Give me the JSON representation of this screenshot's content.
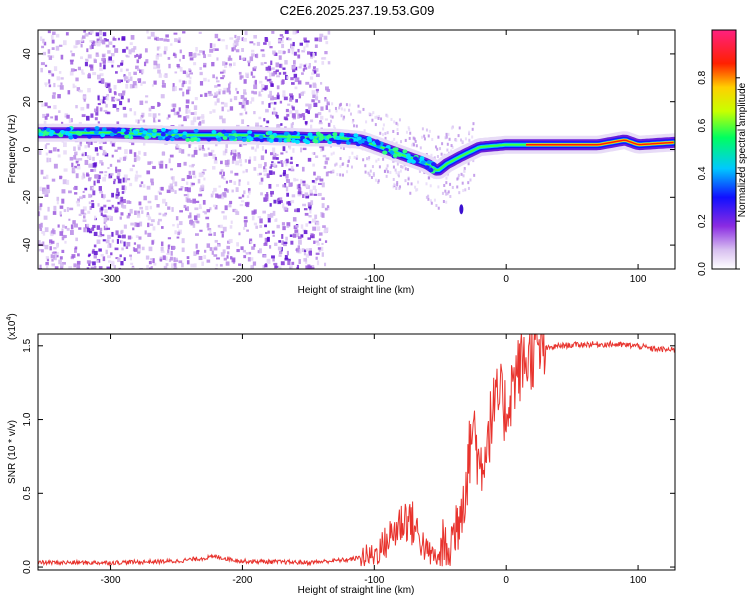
{
  "title": "C2E6.2025.237.19.53.G09",
  "chart_data": [
    {
      "type": "heatmap",
      "xlabel": "Height of straight line (km)",
      "ylabel": "Frequency (Hz)",
      "xlim": [
        -355,
        128
      ],
      "ylim": [
        -50,
        50
      ],
      "xticks": [
        -300,
        -200,
        -100,
        0,
        100
      ],
      "xtick_labels": [
        "-300",
        "-200",
        "-100",
        "0",
        "100"
      ],
      "yticks": [
        -40,
        -20,
        0,
        20,
        40
      ],
      "ytick_labels": [
        "-40",
        "-20",
        "0",
        "20",
        "40"
      ],
      "ridge": {
        "x": [
          -355,
          -320,
          -300,
          -250,
          -200,
          -150,
          -130,
          -110,
          -90,
          -70,
          -60,
          -52,
          -45,
          -35,
          -20,
          0,
          40,
          70,
          90,
          100,
          128
        ],
        "y": [
          7,
          7,
          7,
          6,
          6,
          5,
          5,
          4,
          0,
          -4,
          -6,
          -9,
          -6,
          -3,
          1,
          2,
          2,
          2,
          4,
          2,
          3
        ]
      },
      "colorbar": {
        "label": "Normalized spectral amplitude",
        "range": [
          0,
          1
        ],
        "ticks": [
          0.0,
          0.2,
          0.4,
          0.6,
          0.8
        ],
        "tick_labels": [
          "0.0",
          "0.2",
          "0.4",
          "0.6",
          "0.8"
        ]
      }
    },
    {
      "type": "line",
      "xlabel": "Height of straight line (km)",
      "ylabel": "SNR (10 * v/v)",
      "multiplier_label": "(x10",
      "multiplier_exp": "4",
      "multiplier_close": ")",
      "xlim": [
        -355,
        128
      ],
      "ylim": [
        -0.02,
        1.58
      ],
      "xticks": [
        -300,
        -200,
        -100,
        0,
        100
      ],
      "xtick_labels": [
        "-300",
        "-200",
        "-100",
        "0",
        "100"
      ],
      "yticks": [
        0.0,
        0.5,
        1.0,
        1.5
      ],
      "ytick_labels": [
        "0.0",
        "0.5",
        "1.0",
        "1.5"
      ],
      "series": [
        {
          "name": "SNR",
          "color": "#e8332d",
          "x": [
            -355,
            -300,
            -250,
            -220,
            -200,
            -150,
            -120,
            -100,
            -90,
            -80,
            -75,
            -70,
            -60,
            -50,
            -40,
            -30,
            -25,
            -20,
            -15,
            -10,
            -5,
            0,
            5,
            10,
            20,
            30,
            40,
            60,
            80,
            100,
            110,
            128
          ],
          "y": [
            0.03,
            0.03,
            0.04,
            0.07,
            0.04,
            0.03,
            0.05,
            0.08,
            0.18,
            0.3,
            0.34,
            0.28,
            0.1,
            0.05,
            0.2,
            0.6,
            1.0,
            0.65,
            0.85,
            1.05,
            1.15,
            1.05,
            1.25,
            1.35,
            1.45,
            1.48,
            1.5,
            1.51,
            1.51,
            1.5,
            1.48,
            1.47
          ]
        }
      ]
    }
  ]
}
